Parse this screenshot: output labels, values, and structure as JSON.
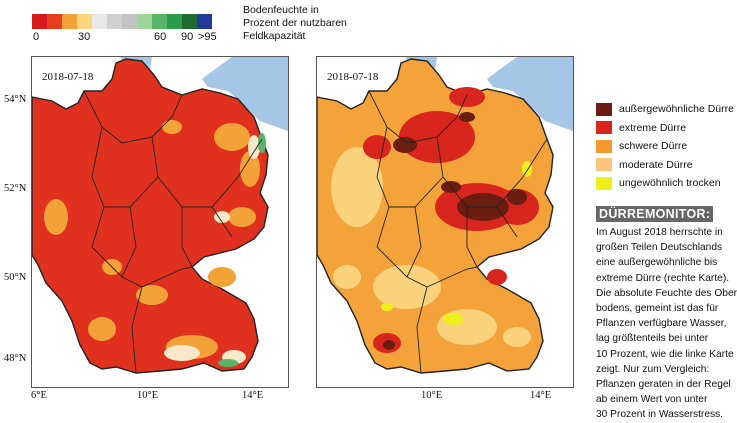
{
  "scale": {
    "colors": [
      "#d7191c",
      "#e83e1f",
      "#f4a13a",
      "#fbd47e",
      "#e8e8e8",
      "#d0d0d0",
      "#c2c2c2",
      "#9fd49a",
      "#58b567",
      "#2b9b4c",
      "#1f6b30",
      "#23399c"
    ],
    "ticks": [
      "0",
      "30",
      "60",
      "90",
      ">95"
    ],
    "title_lines": [
      "Bodenfeuchte in",
      "Prozent der nutzbaren",
      "Feldkapazität"
    ]
  },
  "maps": [
    {
      "date": "2018-07-18",
      "lat_labels": [
        "54°N",
        "52°N",
        "50°N",
        "48°N"
      ],
      "lon_labels": [
        "6°E",
        "10°E",
        "14°E"
      ]
    },
    {
      "date": "2018-07-18",
      "lon_labels": [
        "10°E",
        "14°E"
      ]
    }
  ],
  "legend": [
    {
      "label": "außergewöhnliche Dürre",
      "color": "#6b1d10"
    },
    {
      "label": "extreme Dürre",
      "color": "#d8261f"
    },
    {
      "label": "schwere Dürre",
      "color": "#f39a2f"
    },
    {
      "label": "moderate Dürre",
      "color": "#fbc67a"
    },
    {
      "label": "ungewöhnlich trocken",
      "color": "#eef01a"
    }
  ],
  "monitor": {
    "title": "DÜRREMONITOR:",
    "lines": [
      "Im August 2018 herrschte in",
      "großen Teilen Deutschlands",
      "eine außergewöhnliche bis",
      "extreme Dürre (rechte Karte).",
      "Die absolute Feuchte des Ober-",
      "bodens, gemeint ist das für",
      "Pflanzen verfügbare Wasser,",
      "lag größtenteils bei unter",
      "10 Prozent, wie die linke Karte",
      "zeigt. Nur zum Vergleich:",
      "Pflanzen geraten in der Regel",
      "ab einem Wert von unter",
      "30 Prozent in Wasserstress."
    ]
  }
}
